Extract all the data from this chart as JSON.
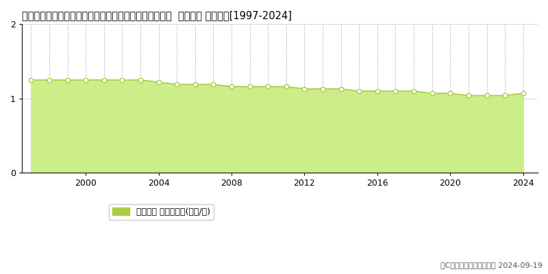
{
  "title": "宮崎県西臼杵郡五ケ瀬町大字鞍岡字道ノ上７０１５番１  基準地価 地価推移[1997-2024]",
  "years": [
    1997,
    1998,
    1999,
    2000,
    2001,
    2002,
    2003,
    2004,
    2005,
    2006,
    2007,
    2008,
    2009,
    2010,
    2011,
    2012,
    2013,
    2014,
    2015,
    2016,
    2017,
    2018,
    2019,
    2020,
    2021,
    2022,
    2023,
    2024
  ],
  "values": [
    1.25,
    1.25,
    1.25,
    1.25,
    1.25,
    1.25,
    1.25,
    1.22,
    1.19,
    1.19,
    1.19,
    1.16,
    1.16,
    1.16,
    1.16,
    1.13,
    1.13,
    1.13,
    1.1,
    1.1,
    1.1,
    1.1,
    1.07,
    1.07,
    1.04,
    1.04,
    1.04,
    1.07
  ],
  "ylim": [
    0,
    2
  ],
  "yticks": [
    0,
    1,
    2
  ],
  "xtick_years": [
    2000,
    2004,
    2008,
    2012,
    2016,
    2020,
    2024
  ],
  "line_color": "#aacc44",
  "fill_color": "#ccee88",
  "marker_facecolor": "#ffffff",
  "marker_edgecolor": "#aacc44",
  "grid_color": "#bbbbbb",
  "bg_color": "#ffffff",
  "legend_label": "基準地価 平均坪単価(万円/坪)",
  "copyright_text": "（C）土地価格ドットコム 2024-09-19",
  "title_fontsize": 10.5,
  "axis_fontsize": 9,
  "legend_fontsize": 9
}
